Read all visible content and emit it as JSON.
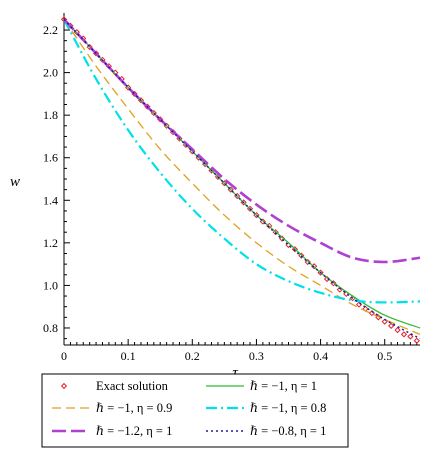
{
  "chart_data": {
    "type": "line",
    "title": "",
    "xlabel": "τ",
    "ylabel": "w",
    "xlim": [
      0,
      0.555
    ],
    "ylim": [
      0.72,
      2.28
    ],
    "xticks": [
      0,
      0.1,
      0.2,
      0.3,
      0.4,
      0.5
    ],
    "yticks": [
      0.8,
      1.0,
      1.2,
      1.4,
      1.6,
      1.8,
      2.0,
      2.2
    ],
    "xtick_labels": [
      "0",
      "0.1",
      "0.2",
      "0.3",
      "0.4",
      "0.5"
    ],
    "ytick_labels": [
      "0.8",
      "1.0",
      "1.2",
      "1.4",
      "1.6",
      "1.8",
      "2.0",
      "2.2"
    ],
    "grid": false,
    "legend_position": "bottom",
    "series": [
      {
        "name": "Exact solution",
        "style": "markers",
        "color": "#e8202a",
        "x": [
          0,
          0.01,
          0.02,
          0.03,
          0.04,
          0.05,
          0.06,
          0.07,
          0.08,
          0.09,
          0.1,
          0.11,
          0.12,
          0.13,
          0.14,
          0.15,
          0.16,
          0.17,
          0.18,
          0.19,
          0.2,
          0.21,
          0.22,
          0.23,
          0.24,
          0.25,
          0.26,
          0.27,
          0.28,
          0.29,
          0.3,
          0.31,
          0.32,
          0.33,
          0.34,
          0.35,
          0.36,
          0.37,
          0.38,
          0.39,
          0.4,
          0.41,
          0.42,
          0.43,
          0.44,
          0.45,
          0.46,
          0.47,
          0.48,
          0.49,
          0.5,
          0.51,
          0.52,
          0.53,
          0.54,
          0.55
        ],
        "y": [
          2.25,
          2.22,
          2.19,
          2.16,
          2.12,
          2.09,
          2.06,
          2.03,
          2.0,
          1.97,
          1.93,
          1.9,
          1.87,
          1.84,
          1.81,
          1.78,
          1.75,
          1.72,
          1.69,
          1.66,
          1.63,
          1.6,
          1.57,
          1.54,
          1.51,
          1.48,
          1.45,
          1.42,
          1.39,
          1.36,
          1.33,
          1.3,
          1.28,
          1.25,
          1.22,
          1.19,
          1.17,
          1.14,
          1.11,
          1.09,
          1.06,
          1.03,
          1.01,
          0.98,
          0.96,
          0.94,
          0.91,
          0.89,
          0.87,
          0.85,
          0.83,
          0.81,
          0.79,
          0.77,
          0.76,
          0.74
        ]
      },
      {
        "name": "ℏ = −1, η = 1",
        "style": "solid",
        "color": "#33bb33",
        "x": [
          0,
          0.05,
          0.1,
          0.15,
          0.2,
          0.25,
          0.3,
          0.35,
          0.4,
          0.45,
          0.5,
          0.555
        ],
        "y": [
          2.25,
          2.09,
          1.93,
          1.78,
          1.63,
          1.48,
          1.33,
          1.2,
          1.06,
          0.95,
          0.86,
          0.8
        ]
      },
      {
        "name": "ℏ = −1, η = 0.9",
        "style": "dashed",
        "color": "#e0a020",
        "x": [
          0,
          0.05,
          0.1,
          0.15,
          0.2,
          0.25,
          0.3,
          0.35,
          0.4,
          0.45,
          0.5,
          0.555
        ],
        "y": [
          2.25,
          2.03,
          1.83,
          1.64,
          1.48,
          1.33,
          1.2,
          1.09,
          1.0,
          0.91,
          0.84,
          0.77
        ]
      },
      {
        "name": "ℏ = −1, η = 0.8",
        "style": "dashdot",
        "color": "#00e0e8",
        "x": [
          0,
          0.05,
          0.1,
          0.15,
          0.2,
          0.25,
          0.3,
          0.35,
          0.4,
          0.45,
          0.5,
          0.555
        ],
        "y": [
          2.25,
          1.97,
          1.73,
          1.53,
          1.36,
          1.22,
          1.1,
          1.02,
          0.965,
          0.93,
          0.92,
          0.925
        ]
      },
      {
        "name": "ℏ = −1.2,  η = 1",
        "style": "longdash",
        "color": "#b040d0",
        "x": [
          0,
          0.05,
          0.1,
          0.15,
          0.2,
          0.25,
          0.3,
          0.35,
          0.4,
          0.45,
          0.5,
          0.555
        ],
        "y": [
          2.25,
          2.09,
          1.93,
          1.78,
          1.64,
          1.5,
          1.38,
          1.28,
          1.2,
          1.13,
          1.11,
          1.13
        ]
      },
      {
        "name": "ℏ = −0.8, η = 1",
        "style": "dotted",
        "color": "#1a1aa0",
        "x": [
          0,
          0.05,
          0.1,
          0.15,
          0.2,
          0.25,
          0.3,
          0.35,
          0.4,
          0.45,
          0.5,
          0.555
        ],
        "y": [
          2.25,
          2.09,
          1.93,
          1.78,
          1.63,
          1.48,
          1.33,
          1.19,
          1.06,
          0.94,
          0.84,
          0.75
        ]
      }
    ]
  }
}
